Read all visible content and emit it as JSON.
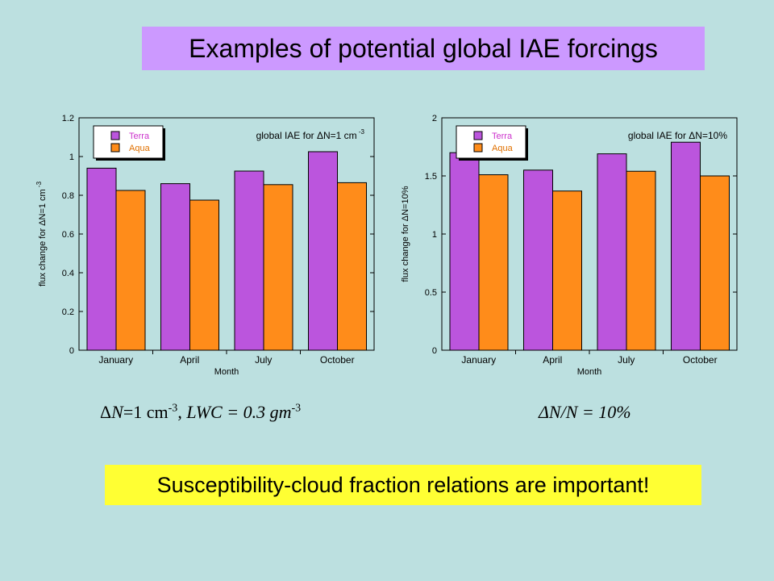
{
  "slide": {
    "title": "Examples of potential global IAE forcings",
    "note": "Susceptibility-cloud fraction relations are important!",
    "caption_left": {
      "delta": "Δ",
      "var_n": "N",
      "eq1": "=1 cm",
      "sup1": "-3",
      "comma": ", ",
      "lwc": "LWC",
      "eq2": " = 0.3 gm",
      "sup2": "-3"
    },
    "caption_right": {
      "text": "ΔN/N = 10%"
    }
  },
  "colors": {
    "background": "#bce0e0",
    "title_bg": "#cc99ff",
    "note_bg": "#ffff33",
    "terra": "#bb55dd",
    "aqua": "#ff8c1a"
  },
  "chart_data": [
    {
      "type": "bar",
      "title": "global IAE for ΔN=1 cm-3",
      "title_main": "global IAE for ΔN=1 cm",
      "title_sup": "-3",
      "xlabel": "Month",
      "ylabel": "flux change for ΔN=1 cm",
      "ylabel_sup": "-3",
      "ylim": [
        0,
        1.2
      ],
      "yticks": [
        0,
        0.2,
        0.4,
        0.6,
        0.8,
        1,
        1.2
      ],
      "ytick_labels": [
        "0",
        "0.2",
        "0.4",
        "0.6",
        "0.8",
        "1",
        "1.2"
      ],
      "categories": [
        "January",
        "April",
        "July",
        "October"
      ],
      "series": [
        {
          "name": "Terra",
          "values": [
            0.94,
            0.86,
            0.925,
            1.025
          ]
        },
        {
          "name": "Aqua",
          "values": [
            0.825,
            0.775,
            0.855,
            0.865
          ]
        }
      ],
      "legend": "top-left",
      "grid": false
    },
    {
      "type": "bar",
      "title": "global IAE for ΔN=10%",
      "title_main": "global IAE for ΔN=10%",
      "title_sup": "",
      "xlabel": "Month",
      "ylabel": "flux change for ΔN=10%",
      "ylabel_sup": "",
      "ylim": [
        0,
        2
      ],
      "yticks": [
        0,
        0.5,
        1,
        1.5,
        2
      ],
      "ytick_labels": [
        "0",
        "0.5",
        "1",
        "1.5",
        "2"
      ],
      "categories": [
        "January",
        "April",
        "July",
        "October"
      ],
      "series": [
        {
          "name": "Terra",
          "values": [
            1.7,
            1.55,
            1.69,
            1.79
          ]
        },
        {
          "name": "Aqua",
          "values": [
            1.51,
            1.37,
            1.54,
            1.5
          ]
        }
      ],
      "legend": "top-left",
      "grid": false
    }
  ]
}
